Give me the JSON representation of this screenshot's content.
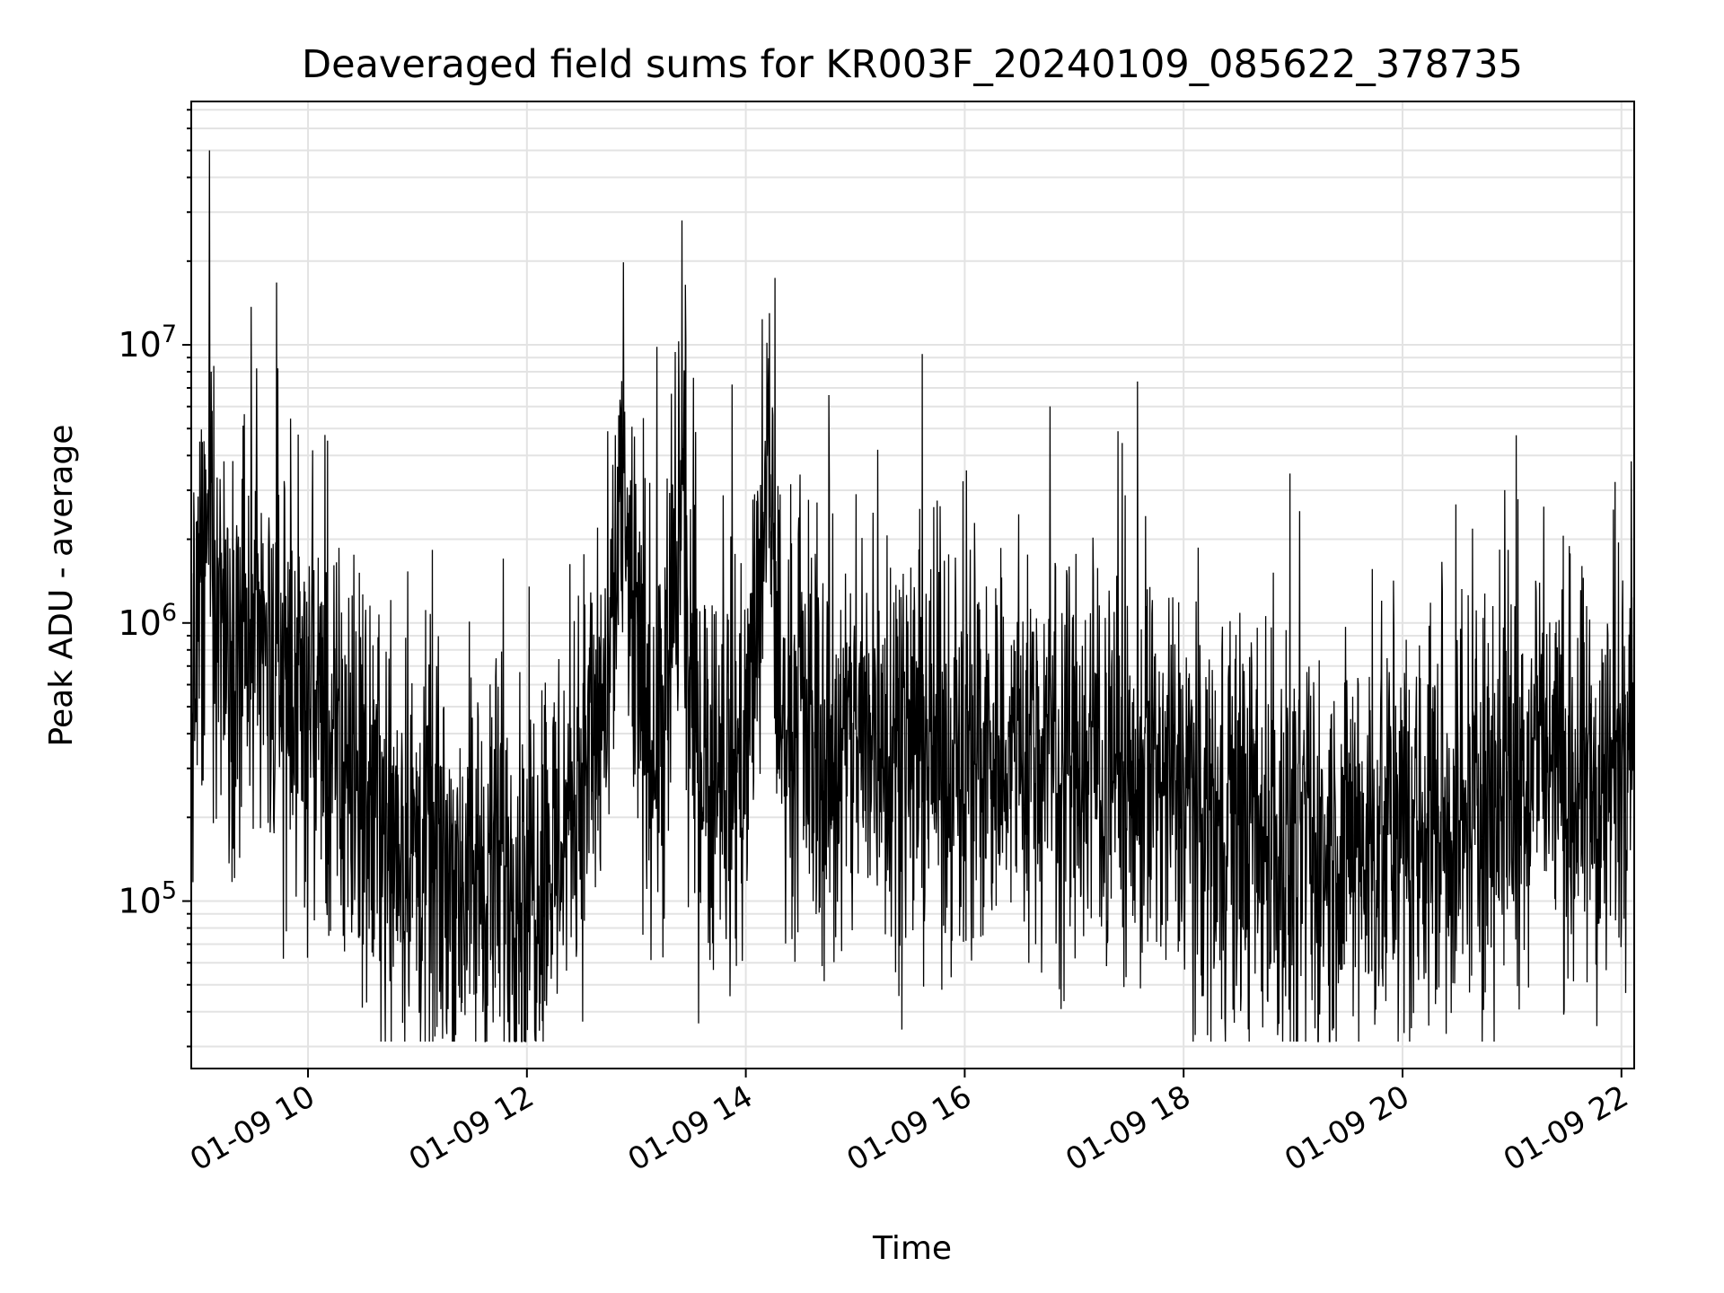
{
  "chart_data": {
    "type": "line",
    "title": "Deaveraged field sums for KR003F_20240109_085622_378735",
    "xlabel": "Time",
    "ylabel": "Peak ADU - average",
    "y_scale": "log",
    "grid": true,
    "x_range": [
      "2024-01-09 08:56",
      "2024-01-09 22:07"
    ],
    "ylim": [
      25000,
      75000000
    ],
    "x_ticks": [
      "01-09 10",
      "01-09 12",
      "01-09 14",
      "01-09 16",
      "01-09 18",
      "01-09 20",
      "01-09 22"
    ],
    "y_ticks": [
      {
        "base": "10",
        "exp": "5",
        "value": 100000
      },
      {
        "base": "10",
        "exp": "6",
        "value": 1000000
      },
      {
        "base": "10",
        "exp": "7",
        "value": 10000000
      }
    ],
    "series": [
      {
        "color": "#000000",
        "x": [
          "2024-01-09 09:00",
          "2024-01-09 09:05",
          "2024-01-09 09:06",
          "2024-01-09 09:10",
          "2024-01-09 09:20",
          "2024-01-09 09:30",
          "2024-01-09 09:45",
          "2024-01-09 10:00",
          "2024-01-09 10:15",
          "2024-01-09 10:30",
          "2024-01-09 10:45",
          "2024-01-09 11:00",
          "2024-01-09 11:15",
          "2024-01-09 11:30",
          "2024-01-09 11:45",
          "2024-01-09 12:00",
          "2024-01-09 12:15",
          "2024-01-09 12:30",
          "2024-01-09 12:45",
          "2024-01-09 12:52",
          "2024-01-09 13:00",
          "2024-01-09 13:15",
          "2024-01-09 13:25",
          "2024-01-09 13:30",
          "2024-01-09 13:45",
          "2024-01-09 14:00",
          "2024-01-09 14:13",
          "2024-01-09 14:20",
          "2024-01-09 14:30",
          "2024-01-09 14:45",
          "2024-01-09 15:00",
          "2024-01-09 15:15",
          "2024-01-09 15:30",
          "2024-01-09 15:45",
          "2024-01-09 16:00",
          "2024-01-09 16:15",
          "2024-01-09 16:30",
          "2024-01-09 16:45",
          "2024-01-09 17:00",
          "2024-01-09 17:15",
          "2024-01-09 17:30",
          "2024-01-09 17:45",
          "2024-01-09 18:00",
          "2024-01-09 18:15",
          "2024-01-09 18:30",
          "2024-01-09 18:45",
          "2024-01-09 19:00",
          "2024-01-09 19:15",
          "2024-01-09 19:30",
          "2024-01-09 19:45",
          "2024-01-09 20:00",
          "2024-01-09 20:15",
          "2024-01-09 20:30",
          "2024-01-09 20:45",
          "2024-01-09 21:00",
          "2024-01-09 21:15",
          "2024-01-09 21:30",
          "2024-01-09 21:45",
          "2024-01-09 22:00",
          "2024-01-09 22:07"
        ],
        "values": [
          800000,
          1500000,
          50000000,
          1200000,
          900000,
          700000,
          600000,
          500000,
          300000,
          250000,
          180000,
          140000,
          130000,
          120000,
          125000,
          130000,
          150000,
          300000,
          500000,
          2500000,
          600000,
          300000,
          28000000,
          400000,
          300000,
          350000,
          13000000,
          400000,
          500000,
          300000,
          350000,
          400000,
          380000,
          350000,
          330000,
          350000,
          360000,
          340000,
          320000,
          300000,
          280000,
          260000,
          240000,
          200000,
          180000,
          160000,
          150000,
          140000,
          150000,
          160000,
          170000,
          180000,
          200000,
          220000,
          250000,
          400000,
          250000,
          220000,
          300000,
          1000000
        ]
      }
    ]
  }
}
